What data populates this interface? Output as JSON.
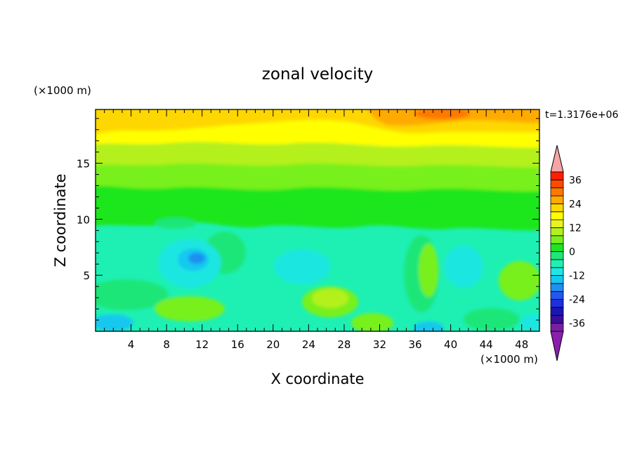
{
  "chart_data": {
    "type": "heatmap",
    "title": "zonal velocity",
    "xlabel": "X coordinate",
    "ylabel": "Z coordinate",
    "x_unit": "(×1000 m)",
    "y_unit": "(×1000 m)",
    "time_label": "t=1.3176e+06",
    "xlim": [
      0,
      50
    ],
    "ylim": [
      0,
      19.8
    ],
    "x_ticks": [
      4,
      8,
      12,
      16,
      20,
      24,
      28,
      32,
      36,
      40,
      44,
      48
    ],
    "y_ticks": [
      5,
      10,
      15
    ],
    "colorbar": {
      "levels": [
        -40,
        -36,
        -32,
        -28,
        -24,
        -20,
        -16,
        -12,
        -8,
        -4,
        0,
        4,
        8,
        12,
        16,
        20,
        24,
        28,
        32,
        36,
        40
      ],
      "tick_labels": [
        "36",
        "24",
        "12",
        "0",
        "-12",
        "-24",
        "-36"
      ],
      "colors": [
        "#7a1fa0",
        "#3a0e9a",
        "#1a16b4",
        "#1e2ee0",
        "#2058f0",
        "#1e90f0",
        "#14c8f0",
        "#1ee6e0",
        "#1ef0b4",
        "#1ee678",
        "#1ee61e",
        "#78f01e",
        "#b4f01e",
        "#e6f51e",
        "#ffff00",
        "#ffd700",
        "#ffaa00",
        "#ff7800",
        "#ff4b00",
        "#ff1e00"
      ],
      "under_color": "#8a1fae",
      "over_color": "#f5a5a5"
    },
    "field_description_bands": [
      {
        "z_range": [
          17.5,
          19.8
        ],
        "approx_value": 20
      },
      {
        "z_range": [
          15,
          17.5
        ],
        "approx_value": 14
      },
      {
        "z_range": [
          12,
          15
        ],
        "approx_value": 8
      },
      {
        "z_range": [
          9.5,
          12
        ],
        "approx_value": 2
      },
      {
        "z_range": [
          0,
          9.5
        ],
        "approx_value": -6
      }
    ]
  }
}
